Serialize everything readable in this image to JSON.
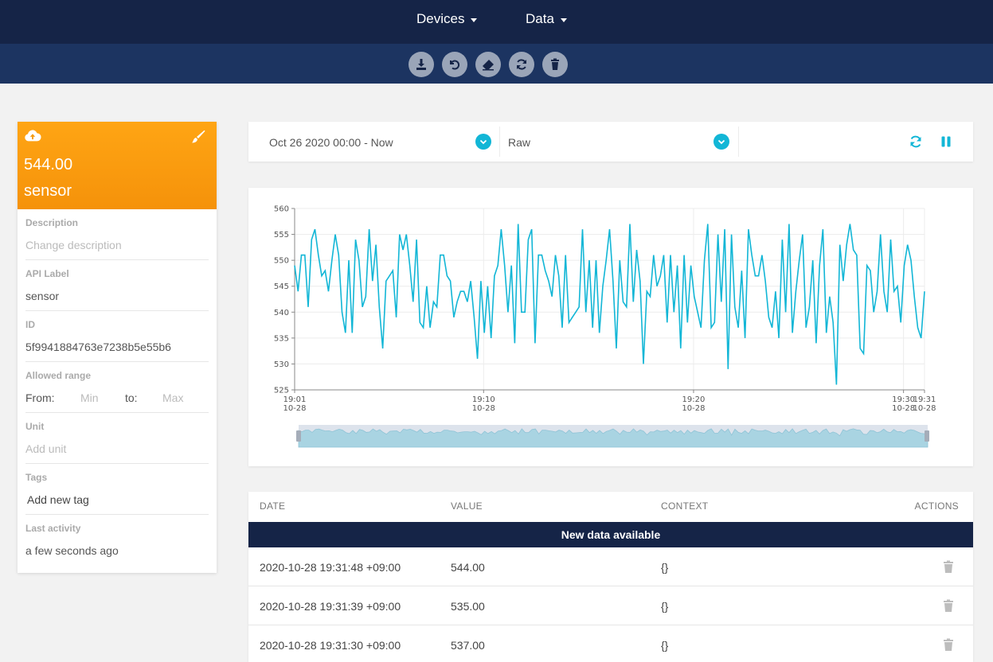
{
  "nav": {
    "devices": "Devices",
    "data": "Data"
  },
  "toolbar": [
    "download-icon",
    "undo-icon",
    "eraser-icon",
    "refresh-icon",
    "trash-icon"
  ],
  "card": {
    "value": "544.00",
    "name": "sensor",
    "description_label": "Description",
    "description_placeholder": "Change description",
    "api_label_label": "API Label",
    "api_label": "sensor",
    "id_label": "ID",
    "id": "5f9941884763e7238b5e55b6",
    "range_label": "Allowed range",
    "range_from": "From:",
    "range_min": "Min",
    "range_to": "to:",
    "range_max": "Max",
    "unit_label": "Unit",
    "unit_placeholder": "Add unit",
    "tags_label": "Tags",
    "tags_add": "Add new tag",
    "last_activity_label": "Last activity",
    "last_activity": "a few seconds ago",
    "accent": "#ffa514"
  },
  "filters": {
    "date_range": "Oct 26 2020 00:00 - Now",
    "aggregation": "Raw"
  },
  "chart_data": {
    "type": "line",
    "color": "#12b6d6",
    "ylim": [
      525,
      560
    ],
    "yticks": [
      525,
      530,
      535,
      540,
      545,
      550,
      555,
      560
    ],
    "xticks": [
      {
        "time": "19:01",
        "date": "10-28"
      },
      {
        "time": "19:10",
        "date": "10-28"
      },
      {
        "time": "19:20",
        "date": "10-28"
      },
      {
        "time": "19:30",
        "date": "10-28"
      },
      {
        "time": "19:31",
        "date": "10-28"
      }
    ],
    "xlim_minutes": [
      1,
      31
    ],
    "tick_minutes": [
      1,
      10,
      20,
      30,
      31
    ],
    "y": [
      549,
      544,
      551,
      551,
      541,
      554,
      556,
      551,
      547,
      548,
      544,
      550,
      555,
      551,
      540,
      536,
      550,
      536,
      554,
      550,
      541,
      543,
      556,
      546,
      553,
      541,
      533,
      546,
      547,
      548,
      539,
      555,
      552,
      555,
      549,
      542,
      554,
      538,
      537,
      545,
      537,
      542,
      541,
      551,
      551,
      547,
      546,
      539,
      542,
      544,
      544,
      542,
      546,
      539,
      531,
      546,
      536,
      545,
      535,
      547,
      549,
      556,
      549,
      540,
      549,
      534,
      557,
      540,
      540,
      554,
      556,
      534,
      551,
      551,
      548,
      546,
      543,
      551,
      547,
      537,
      551,
      538,
      539,
      540,
      541,
      556,
      540,
      550,
      537,
      550,
      536,
      545,
      550,
      556,
      546,
      533,
      550,
      542,
      541,
      557,
      542,
      552,
      546,
      530,
      544,
      543,
      551,
      545,
      547,
      551,
      538,
      551,
      540,
      549,
      533,
      551,
      538,
      549,
      543,
      540,
      537,
      550,
      557,
      537,
      538,
      555,
      542,
      556,
      529,
      555,
      541,
      537,
      548,
      535,
      556,
      551,
      547,
      547,
      551,
      546,
      539,
      537,
      544,
      535,
      554,
      540,
      557,
      536,
      544,
      550,
      555,
      537,
      541,
      550,
      534,
      549,
      556,
      536,
      543,
      538,
      526,
      553,
      546,
      553,
      557,
      552,
      551,
      533,
      532,
      549,
      548,
      540,
      544,
      555,
      544,
      540,
      554,
      544,
      545,
      538,
      549,
      553,
      550,
      543,
      537,
      535,
      544
    ]
  },
  "table": {
    "headers": {
      "date": "DATE",
      "value": "VALUE",
      "context": "CONTEXT",
      "actions": "ACTIONS"
    },
    "banner": "New data available",
    "rows": [
      {
        "date": "2020-10-28 19:31:48 +09:00",
        "value": "544.00",
        "context": "{}"
      },
      {
        "date": "2020-10-28 19:31:39 +09:00",
        "value": "535.00",
        "context": "{}"
      },
      {
        "date": "2020-10-28 19:31:30 +09:00",
        "value": "537.00",
        "context": "{}"
      }
    ]
  },
  "colors": {
    "navbar": "#152447",
    "toolbar": "#1c3461",
    "accent": "#12b6d6"
  }
}
